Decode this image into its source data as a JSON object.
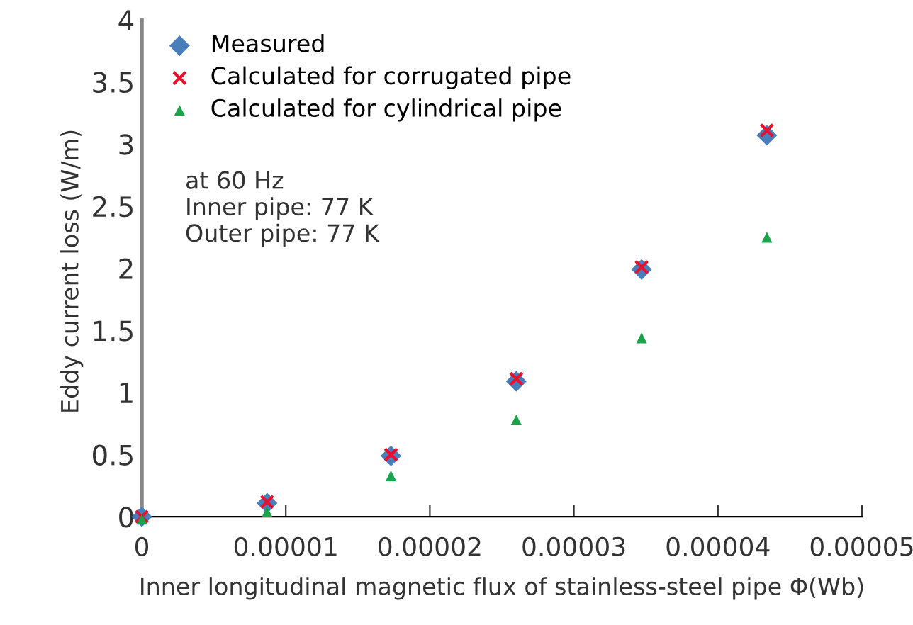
{
  "chart_data": {
    "type": "scatter",
    "xlabel": "Inner longitudinal magnetic flux of stainless-steel pipe Φ(Wb)",
    "ylabel": "Eddy current loss (W/m)",
    "x": [
      0,
      8.7e-06,
      1.73e-05,
      2.6e-05,
      3.47e-05,
      4.34e-05
    ],
    "series": [
      {
        "name": "Measured",
        "color": "#4a7ebb",
        "marker": "diamond",
        "values": [
          0,
          0.11,
          0.49,
          1.09,
          1.99,
          3.07
        ]
      },
      {
        "name": "Calculated for corrugated pipe",
        "color": "#e8112d",
        "marker": "cross",
        "values": [
          0,
          0.12,
          0.5,
          1.11,
          2.01,
          3.11
        ]
      },
      {
        "name": "Calculated for cylindrical pipe",
        "color": "#1aa34a",
        "marker": "triangle",
        "values": [
          -0.02,
          0.04,
          0.33,
          0.78,
          1.44,
          2.25
        ]
      }
    ],
    "annotations": [
      "at 60 Hz\nInner pipe: 77 K\nOuter pipe: 77 K"
    ],
    "xlim": [
      0,
      5e-05
    ],
    "xticks": [
      0,
      {
        "value": 1e-05,
        "label": "0.00001"
      },
      {
        "value": 2e-05,
        "label": "0.00002"
      },
      {
        "value": 3e-05,
        "label": "0.00003"
      },
      {
        "value": 4e-05,
        "label": "0.00004"
      },
      {
        "value": 5e-05,
        "label": "0.00005"
      }
    ],
    "ylim": [
      -0.05,
      4
    ],
    "yticks": [
      0,
      0.5,
      1,
      1.5,
      2,
      2.5,
      3,
      3.5,
      4
    ],
    "grid": false,
    "legend": "top left"
  }
}
